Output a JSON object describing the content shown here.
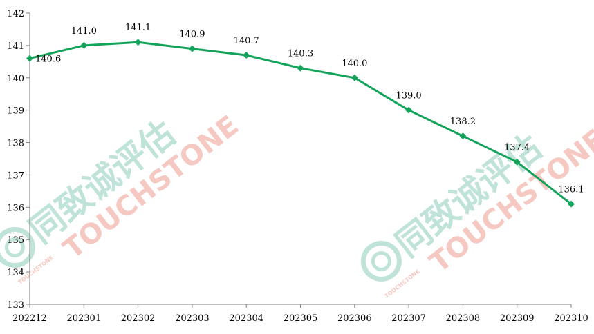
{
  "chart_data": {
    "type": "line",
    "title": "",
    "xlabel": "",
    "ylabel": "",
    "categories": [
      "202212",
      "202301",
      "202302",
      "202303",
      "202304",
      "202305",
      "202306",
      "202307",
      "202308",
      "202309",
      "202310"
    ],
    "series": [
      {
        "values": [
          140.6,
          141.0,
          141.1,
          140.9,
          140.7,
          140.3,
          140.0,
          139.0,
          138.2,
          137.4,
          136.1
        ],
        "labels": [
          "140.6",
          "141.0",
          "141.1",
          "140.9",
          "140.7",
          "140.3",
          "140.0",
          "139.0",
          "138.2",
          "137.4",
          "136.1"
        ],
        "color": "#13a35a",
        "marker": "diamond"
      }
    ],
    "ylim": [
      133,
      142
    ],
    "yticks": [
      "133",
      "134",
      "135",
      "136",
      "137",
      "138",
      "139",
      "140",
      "141",
      "142"
    ],
    "grid": false,
    "legend": "none"
  },
  "watermark": {
    "cn_text": "同致诚评估",
    "en_text": "TOUCHSTONE",
    "small_text": "TOUCHSTONE",
    "cn_color": "#bfe3d9",
    "en_color": "#f6c8c2"
  }
}
